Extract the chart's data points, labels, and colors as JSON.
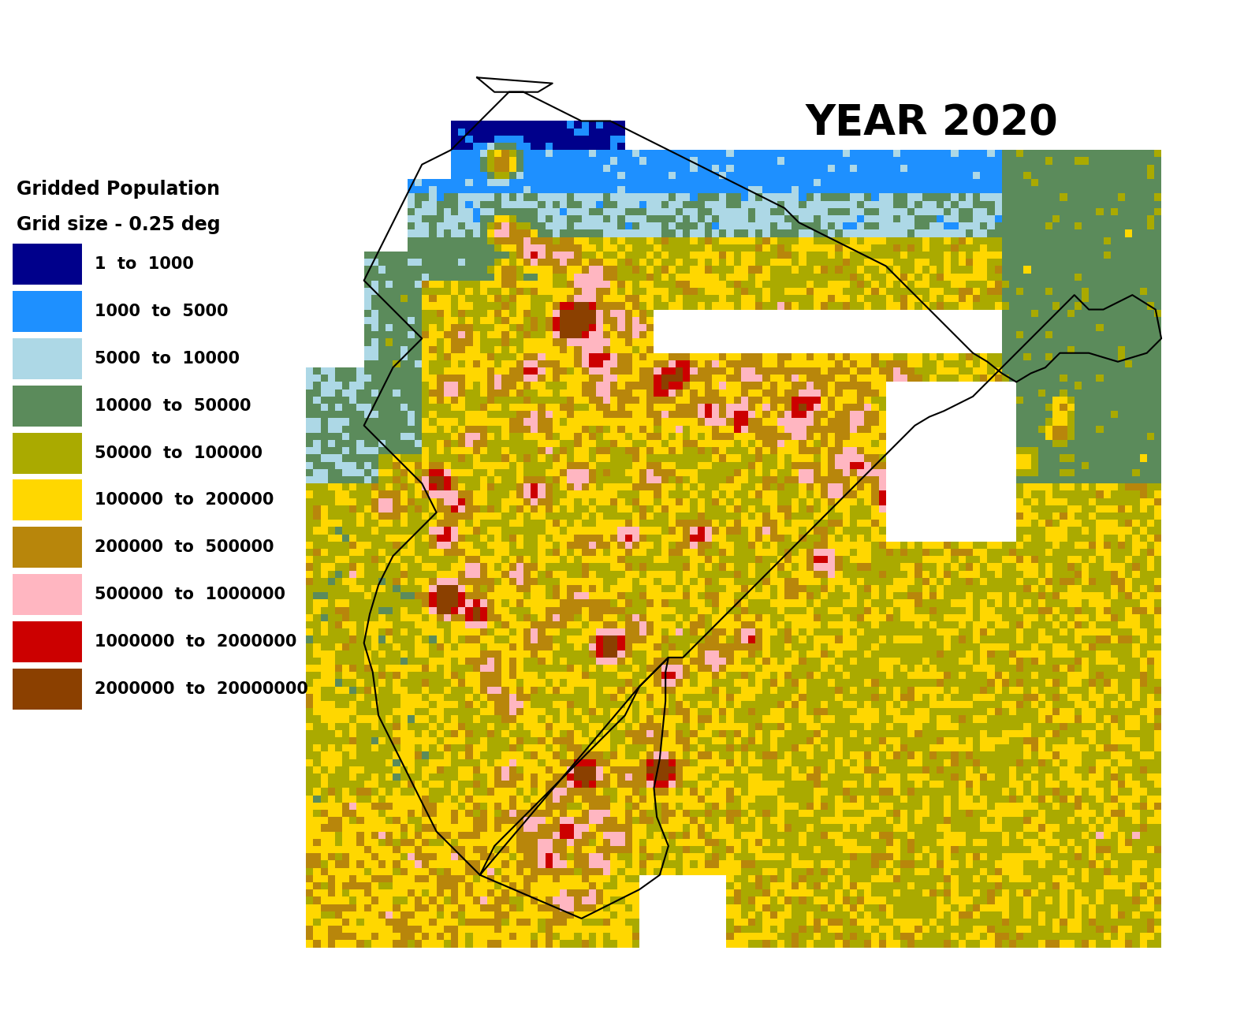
{
  "title": "YEAR 2020",
  "legend_title_line1": "Gridded Population",
  "legend_title_line2": "Grid size - 0.25 deg",
  "legend_labels": [
    "1  to  1000",
    "1000  to  5000",
    "5000  to  10000",
    "10000  to  50000",
    "50000  to  100000",
    "100000  to  200000",
    "200000  to  500000",
    "500000  to  1000000",
    "1000000  to  2000000",
    "2000000  to  20000000"
  ],
  "legend_colors": [
    "#00008B",
    "#1E90FF",
    "#ADD8E6",
    "#5B8B5B",
    "#AAAA00",
    "#FFD700",
    "#B8860B",
    "#FFB6C1",
    "#CC0000",
    "#8B4000"
  ],
  "bin_edges": [
    1,
    1000,
    5000,
    10000,
    50000,
    100000,
    200000,
    500000,
    1000000,
    2000000,
    20000000
  ],
  "background_color": "#FFFFFF",
  "title_fontsize": 38,
  "legend_title_fontsize": 17,
  "legend_fontsize": 15,
  "grid_size_deg": 0.25,
  "lon_min": 67.75,
  "lon_max": 98.0,
  "lat_min": 6.75,
  "lat_max": 37.25,
  "map_lon_min": 67.0,
  "map_lon_max": 100.0,
  "map_lat_min": 5.5,
  "map_lat_max": 38.5
}
